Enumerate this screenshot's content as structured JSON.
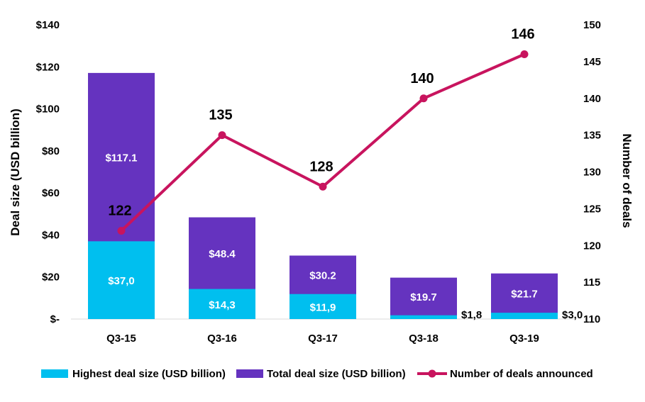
{
  "chart_data": {
    "type": "bar",
    "categories": [
      "Q3-15",
      "Q3-16",
      "Q3-17",
      "Q3-18",
      "Q3-19"
    ],
    "series": [
      {
        "name": "Highest deal size (USD billion)",
        "type": "bar",
        "axis": "left",
        "values": [
          37.0,
          14.3,
          11.9,
          1.8,
          3.0
        ],
        "labels": [
          "$37,0",
          "$14,3",
          "$11,9",
          "$1,8",
          "$3,0"
        ],
        "color": "#00BFEF"
      },
      {
        "name": "Total deal size (USD billion)",
        "type": "bar",
        "axis": "left",
        "values": [
          117.1,
          48.4,
          30.2,
          19.7,
          21.7
        ],
        "labels": [
          "$117.1",
          "$48.4",
          "$30.2",
          "$19.7",
          "$21.7"
        ],
        "color": "#6533BF"
      },
      {
        "name": "Number of deals announced",
        "type": "line",
        "axis": "right",
        "values": [
          122,
          135,
          128,
          140,
          146
        ],
        "labels": [
          "122",
          "135",
          "128",
          "140",
          "146"
        ],
        "color": "#C8145E"
      }
    ],
    "ylabel": "Deal size (USD billion)",
    "y2label": "Number of deals",
    "ylim": [
      0,
      140
    ],
    "y2lim": [
      110,
      150
    ],
    "yticks": [
      0,
      20,
      40,
      60,
      80,
      100,
      120,
      140
    ],
    "ytick_labels": [
      "$-",
      "$20",
      "$40",
      "$60",
      "$80",
      "$100",
      "$120",
      "$140"
    ],
    "y2ticks": [
      110,
      115,
      120,
      125,
      130,
      135,
      140,
      145,
      150
    ],
    "y2tick_labels": [
      "110",
      "115",
      "120",
      "125",
      "130",
      "135",
      "140",
      "145",
      "150"
    ],
    "grid": false,
    "legend": "bottom"
  }
}
